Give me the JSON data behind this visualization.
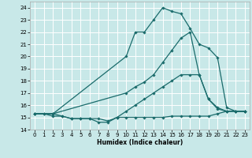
{
  "xlabel": "Humidex (Indice chaleur)",
  "background_color": "#c8e8e8",
  "grid_color": "#ffffff",
  "line_color": "#1a6b6b",
  "xlim": [
    -0.5,
    23.5
  ],
  "ylim": [
    14,
    24.5
  ],
  "yticks": [
    14,
    15,
    16,
    17,
    18,
    19,
    20,
    21,
    22,
    23,
    24
  ],
  "xticks": [
    0,
    1,
    2,
    3,
    4,
    5,
    6,
    7,
    8,
    9,
    10,
    11,
    12,
    13,
    14,
    15,
    16,
    17,
    18,
    19,
    20,
    21,
    22,
    23
  ],
  "series": [
    {
      "x": [
        0,
        1,
        2,
        3,
        4,
        5,
        6,
        7,
        8,
        9,
        10,
        11,
        12,
        13,
        14,
        15,
        16,
        17,
        18,
        19,
        20,
        21,
        22,
        23
      ],
      "y": [
        15.3,
        15.3,
        15.3,
        15.1,
        14.9,
        14.9,
        14.9,
        14.9,
        14.7,
        15.0,
        15.0,
        15.0,
        15.0,
        15.0,
        15.0,
        15.1,
        15.1,
        15.1,
        15.1,
        15.1,
        15.3,
        15.5,
        15.5,
        15.5
      ]
    },
    {
      "x": [
        0,
        1,
        2,
        3,
        4,
        5,
        6,
        7,
        8,
        9,
        10,
        11,
        12,
        13,
        14,
        15,
        16,
        17,
        18,
        19,
        20,
        21,
        22,
        23
      ],
      "y": [
        15.3,
        15.3,
        15.1,
        15.1,
        14.9,
        14.9,
        14.9,
        14.6,
        14.6,
        15.0,
        15.5,
        16.0,
        16.5,
        17.0,
        17.5,
        18.0,
        18.5,
        18.5,
        18.5,
        16.5,
        15.8,
        15.5,
        15.5,
        15.5
      ]
    },
    {
      "x": [
        0,
        2,
        10,
        11,
        12,
        13,
        14,
        15,
        16,
        17,
        18,
        19,
        20,
        21,
        22,
        23
      ],
      "y": [
        15.3,
        15.3,
        17.0,
        17.5,
        17.9,
        18.5,
        19.5,
        20.5,
        21.5,
        22.0,
        18.5,
        16.5,
        15.7,
        15.5,
        15.5,
        15.5
      ]
    },
    {
      "x": [
        0,
        2,
        10,
        11,
        12,
        13,
        14,
        15,
        16,
        17,
        18,
        19,
        20,
        21,
        22,
        23
      ],
      "y": [
        15.3,
        15.3,
        20.0,
        22.0,
        22.0,
        23.0,
        24.0,
        23.7,
        23.5,
        22.3,
        21.0,
        20.7,
        19.9,
        15.8,
        15.5,
        15.5
      ]
    }
  ]
}
